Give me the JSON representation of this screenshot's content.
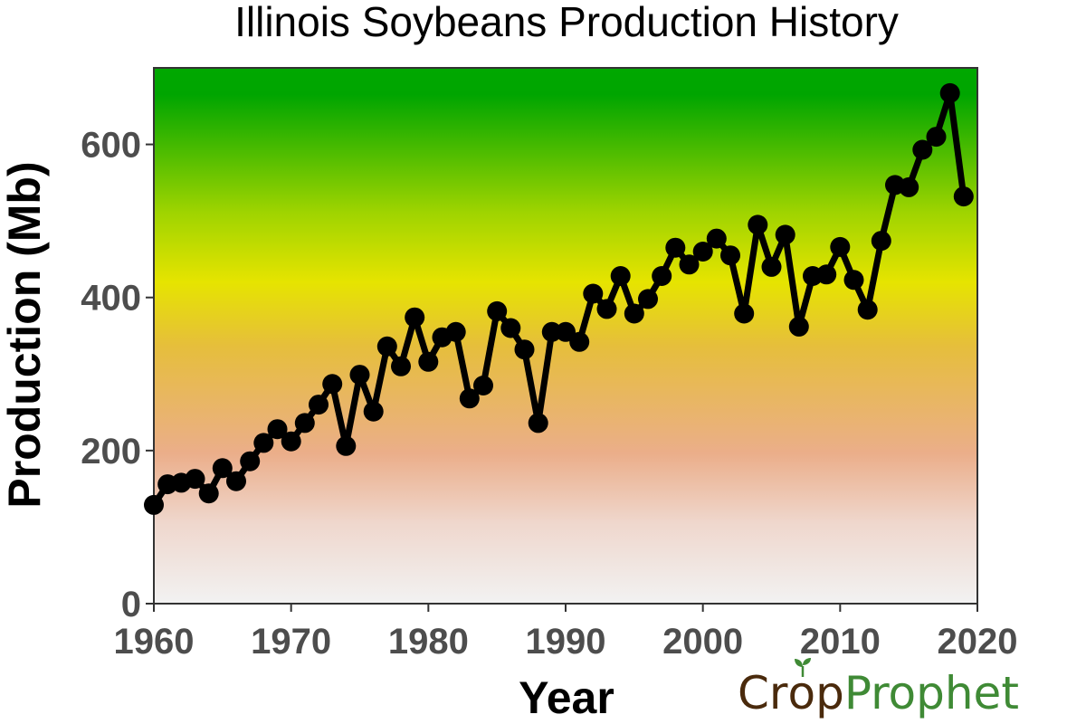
{
  "chart_data": {
    "type": "line",
    "title": "Illinois Soybeans Production History",
    "xlabel": "Year",
    "ylabel": "Production (Mb)",
    "xlim": [
      1960,
      2020
    ],
    "ylim": [
      0,
      700
    ],
    "xticks": [
      "1960",
      "1970",
      "1980",
      "1990",
      "2000",
      "2010",
      "2020"
    ],
    "yticks": [
      "0",
      "200",
      "400",
      "600"
    ],
    "grid": false,
    "legend": "none",
    "series": [
      {
        "x": [
          1960,
          1961,
          1962,
          1963,
          1964,
          1965,
          1966,
          1967,
          1968,
          1969,
          1970,
          1971,
          1972,
          1973,
          1974,
          1975,
          1976,
          1977,
          1978,
          1979,
          1980,
          1981,
          1982,
          1983,
          1984,
          1985,
          1986,
          1987,
          1988,
          1989,
          1990,
          1991,
          1992,
          1993,
          1994,
          1995,
          1996,
          1997,
          1998,
          1999,
          2000,
          2001,
          2002,
          2003,
          2004,
          2005,
          2006,
          2007,
          2008,
          2009,
          2010,
          2011,
          2012,
          2013,
          2014,
          2015,
          2016,
          2017,
          2018,
          2019
        ],
        "values": [
          129,
          156,
          158,
          163,
          144,
          177,
          160,
          186,
          210,
          228,
          212,
          236,
          260,
          287,
          206,
          299,
          251,
          336,
          310,
          374,
          316,
          348,
          355,
          268,
          285,
          382,
          360,
          332,
          236,
          355,
          355,
          342,
          405,
          385,
          428,
          379,
          398,
          428,
          465,
          443,
          460,
          477,
          455,
          379,
          495,
          440,
          482,
          362,
          428,
          430,
          466,
          423,
          384,
          474,
          547,
          544,
          593,
          610,
          667,
          532
        ]
      }
    ],
    "colors": {
      "line": "#000000",
      "background_gradient": [
        "#00a800",
        "#e8e800",
        "#e8ab86",
        "#f2f2f2"
      ]
    }
  },
  "brand": {
    "part1": "Cr",
    "part2": "p",
    "part3": "Prophet",
    "sprout_icon": "sprout-icon"
  }
}
